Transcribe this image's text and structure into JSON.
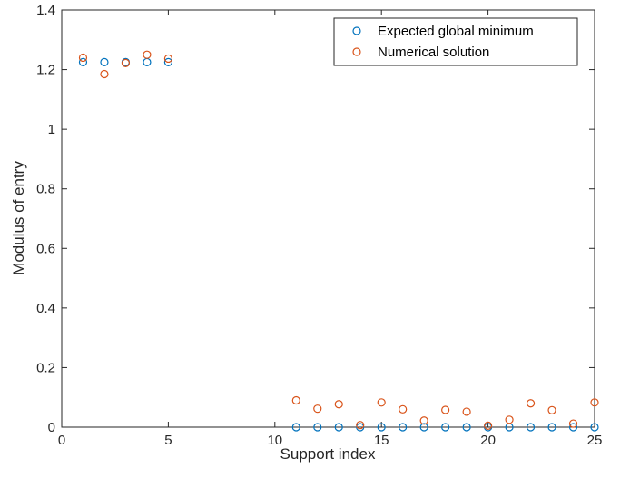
{
  "chart_data": {
    "type": "scatter",
    "title": "",
    "xlabel": "Support index",
    "ylabel": "Modulus of entry",
    "xlim": [
      0,
      25
    ],
    "ylim": [
      0,
      1.4
    ],
    "xticks": [
      0,
      5,
      10,
      15,
      20,
      25
    ],
    "yticks": [
      0,
      0.2,
      0.4,
      0.6,
      0.8,
      1,
      1.2,
      1.4
    ],
    "xtick_labels": [
      "0",
      "5",
      "10",
      "15",
      "20",
      "25"
    ],
    "ytick_labels": [
      "0",
      "0.2",
      "0.4",
      "0.6",
      "0.8",
      "1",
      "1.2",
      "1.4"
    ],
    "grid": false,
    "legend_position": "top-right",
    "series": [
      {
        "name": "Expected global minimum",
        "color": "#0072BD",
        "marker": "circle-open",
        "x": [
          1,
          2,
          3,
          4,
          5,
          11,
          12,
          13,
          14,
          15,
          16,
          17,
          18,
          19,
          20,
          21,
          22,
          23,
          24,
          25
        ],
        "y": [
          1.225,
          1.225,
          1.225,
          1.225,
          1.225,
          0,
          0,
          0,
          0,
          0,
          0,
          0,
          0,
          0,
          0,
          0,
          0,
          0,
          0,
          0
        ]
      },
      {
        "name": "Numerical solution",
        "color": "#D95319",
        "marker": "circle-open",
        "x": [
          1,
          2,
          3,
          4,
          5,
          11,
          12,
          13,
          14,
          15,
          16,
          17,
          18,
          19,
          20,
          21,
          22,
          23,
          24,
          25
        ],
        "y": [
          1.24,
          1.185,
          1.222,
          1.25,
          1.237,
          0.09,
          0.062,
          0.077,
          0.007,
          0.083,
          0.06,
          0.022,
          0.058,
          0.052,
          0.005,
          0.025,
          0.08,
          0.057,
          0.012,
          0.083
        ]
      }
    ]
  }
}
